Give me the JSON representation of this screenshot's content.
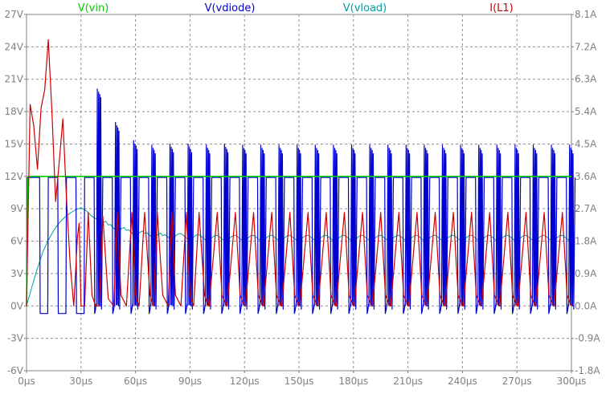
{
  "chart_data": {
    "type": "line",
    "title": "",
    "xlabel": "",
    "ylabel": "",
    "y2label": "",
    "grid": true,
    "grid_style": "dashed",
    "legend_placement": "top",
    "x_unit": "µs",
    "xlim": [
      0,
      300
    ],
    "ylim": [
      -6,
      27
    ],
    "y2lim": [
      -1.8,
      8.1
    ],
    "x_ticks": [
      0,
      30,
      60,
      90,
      120,
      150,
      180,
      210,
      240,
      270,
      300
    ],
    "x_tick_labels": [
      "0µs",
      "30µs",
      "60µs",
      "90µs",
      "120µs",
      "150µs",
      "180µs",
      "210µs",
      "240µs",
      "270µs",
      "300µs"
    ],
    "y_ticks": [
      -6,
      -3,
      0,
      3,
      6,
      9,
      12,
      15,
      18,
      21,
      24,
      27
    ],
    "y_tick_labels": [
      "-6V",
      "-3V",
      "0V",
      "3V",
      "6V",
      "9V",
      "12V",
      "15V",
      "18V",
      "21V",
      "24V",
      "27V"
    ],
    "y2_ticks": [
      -1.8,
      -0.9,
      0,
      0.9,
      1.8,
      2.7,
      3.6,
      4.5,
      5.4,
      6.3,
      7.2,
      8.1
    ],
    "y2_tick_labels": [
      "-1.8A",
      "-0.9A",
      "0.0A",
      "0.9A",
      "1.8A",
      "2.7A",
      "3.6A",
      "4.5A",
      "5.4A",
      "6.3A",
      "7.2A",
      "8.1A"
    ],
    "switching_period_us": 10,
    "series": [
      {
        "name": "V(vin)",
        "axis": "left",
        "color": "#00d000",
        "x": [
          0,
          0.8,
          1.5,
          300
        ],
        "y": [
          0,
          11.8,
          12,
          12
        ]
      },
      {
        "name": "V(vdiode)",
        "axis": "left",
        "color": "#0000d0",
        "pattern": "switching",
        "high_level": 11.9,
        "low_level": -0.7,
        "duty": 0.55,
        "first_edge_us": 2,
        "spike_peaks": {
          "x": [
            37,
            38,
            42,
            47,
            48,
            52,
            57,
            62,
            67,
            72,
            77,
            82,
            87,
            92,
            97,
            102,
            107,
            112,
            117,
            122,
            127,
            132,
            137,
            142,
            147,
            152,
            157,
            162,
            167,
            172,
            177,
            182,
            187,
            192,
            197,
            202,
            207,
            212,
            217,
            222,
            227,
            232,
            237,
            242,
            247,
            252,
            257,
            262,
            267,
            272,
            277,
            282,
            287,
            292,
            297
          ],
          "y": [
            20.1,
            19.0,
            17.3,
            17.0,
            18.0,
            16.2,
            15.3,
            15.1,
            14.9,
            14.9,
            15.0,
            14.9,
            15.0,
            14.9,
            14.9,
            14.9,
            15.0,
            14.9,
            14.9,
            14.9,
            14.9,
            14.9,
            14.9,
            14.9,
            14.9,
            14.9,
            14.9,
            14.9,
            14.9,
            14.9,
            14.9,
            14.9,
            14.9,
            14.9,
            14.9,
            14.9,
            14.9,
            14.9,
            14.9,
            14.9,
            14.9,
            14.9,
            14.9,
            14.9,
            14.9,
            14.9,
            14.9,
            14.9,
            14.9,
            14.9,
            14.9,
            14.9,
            14.9,
            14.9,
            14.9
          ]
        }
      },
      {
        "name": "V(vload)",
        "axis": "left",
        "color": "#00a0a0",
        "x": [
          0,
          3,
          6,
          9,
          12,
          15,
          18,
          21,
          24,
          27,
          30,
          33,
          36,
          40,
          45,
          50,
          55,
          60,
          65,
          70,
          75,
          80,
          90,
          100,
          110,
          120,
          130,
          140,
          150,
          160,
          170,
          180,
          190,
          200,
          210,
          220,
          230,
          240,
          250,
          260,
          270,
          280,
          290,
          300
        ],
        "y": [
          0,
          1.8,
          3.5,
          5.0,
          6.1,
          7.0,
          7.7,
          8.2,
          8.6,
          8.9,
          9.1,
          8.8,
          8.3,
          7.9,
          7.5,
          7.2,
          7.0,
          6.8,
          6.7,
          6.6,
          6.5,
          6.5,
          6.4,
          6.3,
          6.3,
          6.3,
          6.3,
          6.3,
          6.3,
          6.3,
          6.3,
          6.3,
          6.3,
          6.3,
          6.3,
          6.3,
          6.3,
          6.3,
          6.3,
          6.3,
          6.3,
          6.3,
          6.3,
          6.3
        ]
      },
      {
        "name": "I(L1)",
        "axis": "right",
        "color": "#d00000",
        "x": [
          0,
          2,
          4,
          6,
          8,
          10,
          12,
          14,
          16,
          18,
          20,
          22,
          24,
          26,
          28,
          29,
          30,
          32,
          34,
          36,
          38,
          40,
          42,
          45,
          48,
          50,
          52,
          55,
          58,
          60,
          62,
          65,
          68,
          70,
          72,
          75,
          78,
          80,
          82,
          85,
          88,
          90,
          92,
          95,
          98,
          100
        ],
        "y": [
          0,
          5.6,
          5.0,
          3.8,
          5.5,
          6.0,
          7.4,
          5.4,
          2.9,
          4.0,
          5.2,
          3.0,
          1.2,
          0.0,
          1.9,
          2.3,
          0.0,
          0.0,
          2.6,
          0.3,
          0.0,
          0.0,
          2.5,
          0.2,
          0.0,
          2.6,
          0.3,
          0.0,
          2.6,
          0.3,
          0.0,
          2.6,
          0.3,
          0.0,
          2.6,
          0.3,
          0.0,
          2.6,
          0.3,
          0.0,
          2.6,
          0.3,
          0.0,
          2.6,
          0.3,
          0.0
        ],
        "steady_state": {
          "min": 0.0,
          "max": 2.6,
          "peak_offset_us": 5,
          "period_us": 10
        }
      }
    ]
  },
  "legend": [
    {
      "label": "V(vin)",
      "color": "#00d000"
    },
    {
      "label": "V(vdiode)",
      "color": "#0000d0"
    },
    {
      "label": "V(vload)",
      "color": "#00a0a0"
    },
    {
      "label": "I(L1)",
      "color": "#d00000"
    }
  ]
}
